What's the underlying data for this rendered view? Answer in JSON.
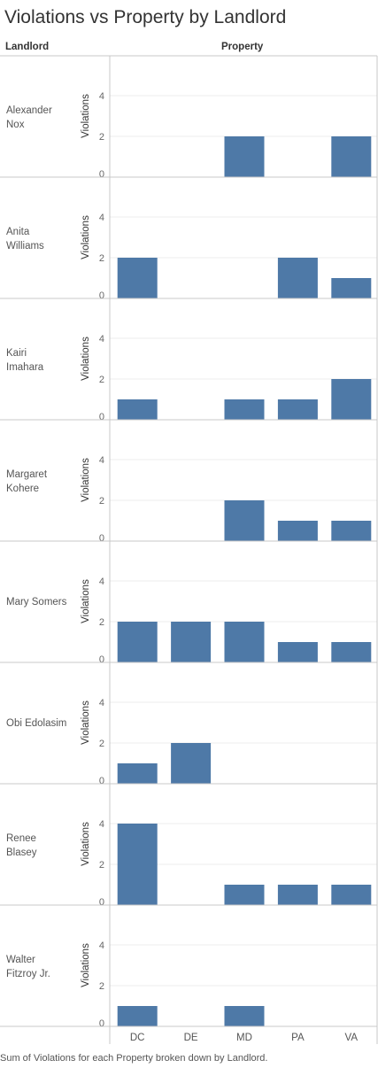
{
  "title": "Violations vs Property by Landlord",
  "column_headers": {
    "landlord": "Landlord",
    "property": "Property"
  },
  "caption": "Sum of Violations for each Property broken down by Landlord.",
  "colors": {
    "bar": "#4e79a7",
    "grid": "#ececec",
    "border": "#c8c8c8"
  },
  "chart_data": {
    "type": "bar",
    "categories": [
      "DC",
      "DE",
      "MD",
      "PA",
      "VA"
    ],
    "ylabel": "Violations",
    "ylim": [
      0,
      5
    ],
    "yticks": [
      0,
      2,
      4
    ],
    "grid": true,
    "panels": [
      {
        "landlord": [
          "Alexander",
          "Nox"
        ],
        "values": [
          0,
          0,
          2,
          0,
          2
        ]
      },
      {
        "landlord": [
          "Anita",
          "Williams"
        ],
        "values": [
          2,
          0,
          0,
          2,
          1
        ]
      },
      {
        "landlord": [
          "Kairi",
          "Imahara"
        ],
        "values": [
          1,
          0,
          1,
          1,
          2
        ]
      },
      {
        "landlord": [
          "Margaret",
          "Kohere"
        ],
        "values": [
          0,
          0,
          2,
          1,
          1
        ]
      },
      {
        "landlord": [
          "Mary Somers"
        ],
        "values": [
          2,
          2,
          2,
          1,
          1
        ]
      },
      {
        "landlord": [
          "Obi Edolasim"
        ],
        "values": [
          1,
          2,
          0,
          0,
          0
        ]
      },
      {
        "landlord": [
          "Renee",
          "Blasey"
        ],
        "values": [
          4,
          0,
          1,
          1,
          1
        ]
      },
      {
        "landlord": [
          "Walter",
          "Fitzroy Jr."
        ],
        "values": [
          1,
          0,
          1,
          0,
          0
        ]
      }
    ]
  }
}
